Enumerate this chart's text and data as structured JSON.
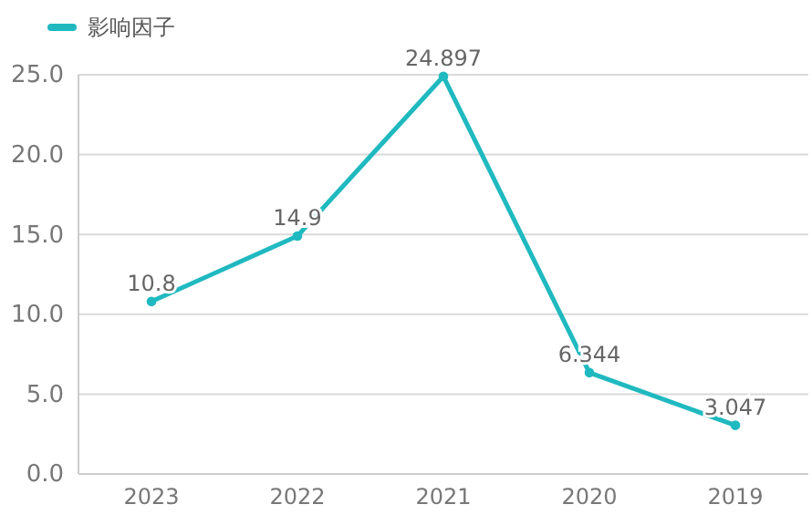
{
  "chart_data": {
    "type": "line",
    "categories": [
      "2023",
      "2022",
      "2021",
      "2020",
      "2019"
    ],
    "series": [
      {
        "name": "影响因子",
        "color": "#20b9c0",
        "values": [
          10.8,
          14.9,
          24.897,
          6.344,
          3.047
        ]
      }
    ],
    "ylim": [
      0,
      25
    ],
    "yticks": [
      {
        "value": 0,
        "label": "0.0"
      },
      {
        "value": 5,
        "label": "5.0"
      },
      {
        "value": 10,
        "label": "10.0"
      },
      {
        "value": 15,
        "label": "15.0"
      },
      {
        "value": 20,
        "label": "20.0"
      },
      {
        "value": 25,
        "label": "25.0"
      }
    ],
    "grid": "y",
    "legend": "top left",
    "marker": "circle",
    "data_labels": true
  }
}
